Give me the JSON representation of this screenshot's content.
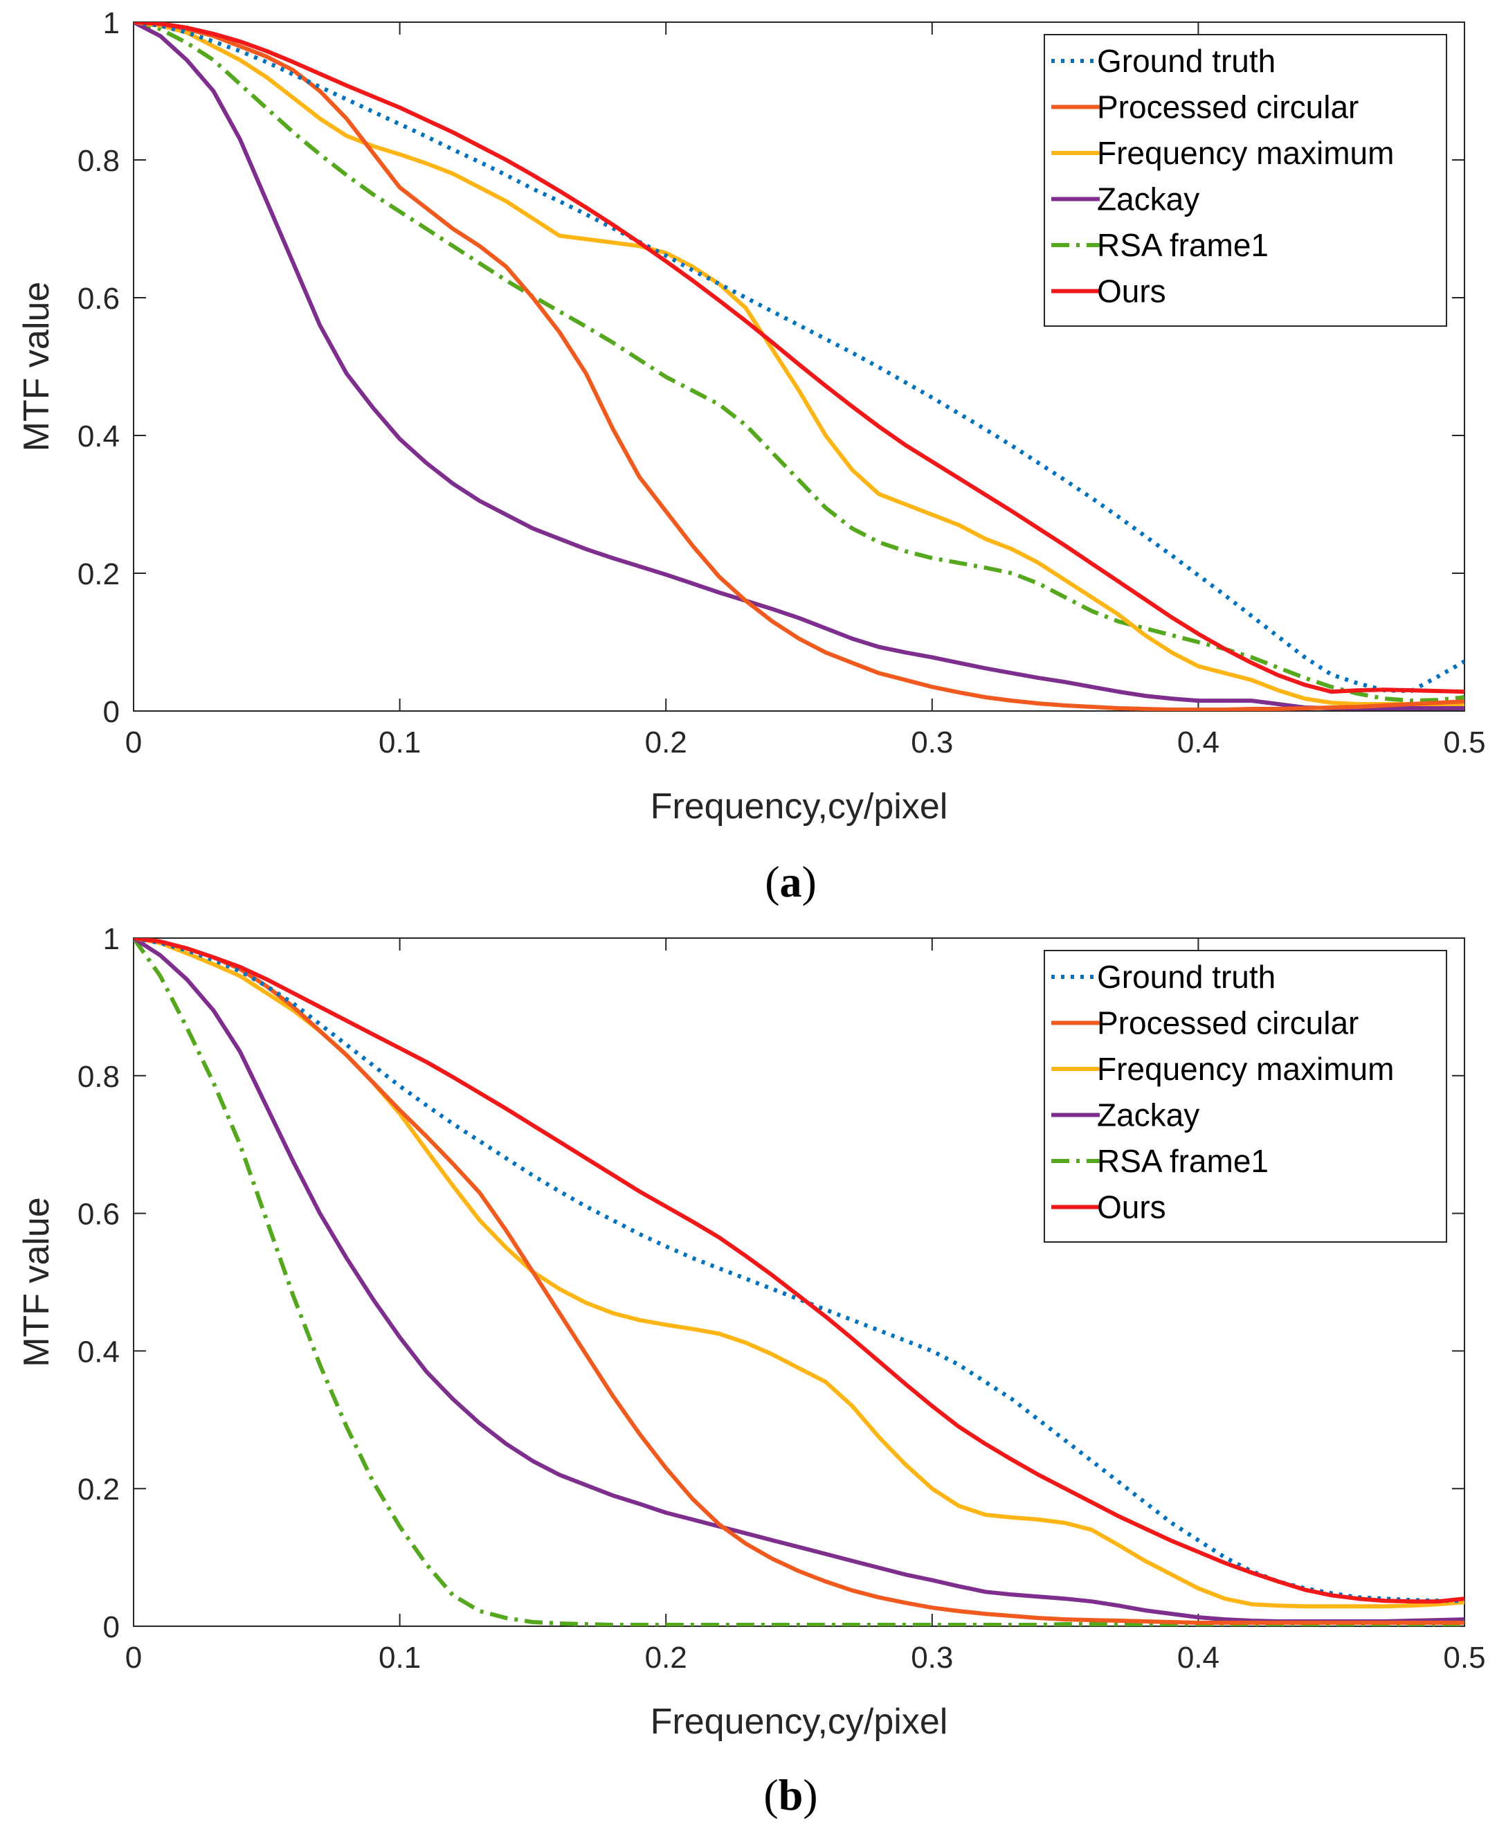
{
  "colors": {
    "ground_truth": "#0072BD",
    "processed_circular": "#F05A1E",
    "frequency_maximum": "#FDB515",
    "zackay": "#7E2F8E",
    "rsa_frame1": "#55A81E",
    "ours": "#F01818",
    "axis": "#262626"
  },
  "chart_data": [
    {
      "type": "line",
      "panel_label": "a",
      "xlabel": "Frequency,cy/pixel",
      "ylabel": "MTF value",
      "xlim": [
        0,
        0.5
      ],
      "ylim": [
        0,
        1
      ],
      "xticks": [
        0,
        0.1,
        0.2,
        0.3,
        0.4,
        0.5
      ],
      "xtick_labels": [
        "0",
        "0.1",
        "0.2",
        "0.3",
        "0.4",
        "0.5"
      ],
      "yticks": [
        0,
        0.2,
        0.4,
        0.6,
        0.8,
        1
      ],
      "ytick_labels": [
        "0",
        "0.2",
        "0.4",
        "0.6",
        "0.8",
        "1"
      ],
      "legend_position": "top-right",
      "x": [
        0,
        0.01,
        0.02,
        0.03,
        0.04,
        0.05,
        0.06,
        0.07,
        0.08,
        0.09,
        0.1,
        0.11,
        0.12,
        0.13,
        0.14,
        0.15,
        0.16,
        0.17,
        0.18,
        0.19,
        0.2,
        0.21,
        0.22,
        0.23,
        0.24,
        0.25,
        0.26,
        0.27,
        0.28,
        0.29,
        0.3,
        0.31,
        0.32,
        0.33,
        0.34,
        0.35,
        0.36,
        0.37,
        0.38,
        0.39,
        0.4,
        0.41,
        0.42,
        0.43,
        0.44,
        0.45,
        0.46,
        0.47,
        0.48,
        0.49,
        0.5
      ],
      "series": [
        {
          "name": "Ground truth",
          "color_key": "ground_truth",
          "style": "dotted",
          "values": [
            1.0,
            0.995,
            0.985,
            0.972,
            0.958,
            0.942,
            0.924,
            0.906,
            0.888,
            0.87,
            0.852,
            0.834,
            0.815,
            0.797,
            0.778,
            0.758,
            0.74,
            0.721,
            0.701,
            0.681,
            0.661,
            0.64,
            0.62,
            0.6,
            0.58,
            0.56,
            0.54,
            0.52,
            0.499,
            0.477,
            0.455,
            0.432,
            0.409,
            0.385,
            0.36,
            0.335,
            0.309,
            0.282,
            0.254,
            0.226,
            0.197,
            0.168,
            0.138,
            0.108,
            0.078,
            0.053,
            0.04,
            0.03,
            0.029,
            0.05,
            0.072
          ]
        },
        {
          "name": "Processed circular",
          "color_key": "processed_circular",
          "style": "solid",
          "values": [
            1.0,
            0.997,
            0.99,
            0.98,
            0.965,
            0.95,
            0.93,
            0.9,
            0.86,
            0.81,
            0.76,
            0.73,
            0.7,
            0.675,
            0.645,
            0.6,
            0.55,
            0.49,
            0.41,
            0.34,
            0.29,
            0.24,
            0.195,
            0.16,
            0.13,
            0.105,
            0.085,
            0.07,
            0.055,
            0.045,
            0.035,
            0.027,
            0.02,
            0.015,
            0.011,
            0.008,
            0.006,
            0.004,
            0.003,
            0.002,
            0.002,
            0.002,
            0.003,
            0.003,
            0.004,
            0.005,
            0.006,
            0.008,
            0.01,
            0.012,
            0.014
          ]
        },
        {
          "name": "Frequency maximum",
          "color_key": "frequency_maximum",
          "style": "solid",
          "values": [
            1.0,
            0.995,
            0.985,
            0.965,
            0.945,
            0.92,
            0.89,
            0.86,
            0.835,
            0.82,
            0.808,
            0.795,
            0.78,
            0.76,
            0.74,
            0.715,
            0.69,
            0.685,
            0.68,
            0.675,
            0.665,
            0.645,
            0.62,
            0.585,
            0.525,
            0.465,
            0.4,
            0.35,
            0.315,
            0.3,
            0.285,
            0.27,
            0.25,
            0.235,
            0.215,
            0.19,
            0.165,
            0.14,
            0.11,
            0.085,
            0.065,
            0.055,
            0.045,
            0.03,
            0.018,
            0.012,
            0.01,
            0.01,
            0.01,
            0.01,
            0.01
          ]
        },
        {
          "name": "Zackay",
          "color_key": "zackay",
          "style": "solid",
          "values": [
            1.0,
            0.98,
            0.945,
            0.9,
            0.83,
            0.74,
            0.65,
            0.56,
            0.49,
            0.44,
            0.395,
            0.36,
            0.33,
            0.305,
            0.285,
            0.265,
            0.25,
            0.235,
            0.222,
            0.21,
            0.198,
            0.185,
            0.172,
            0.16,
            0.148,
            0.135,
            0.12,
            0.105,
            0.093,
            0.085,
            0.078,
            0.07,
            0.062,
            0.055,
            0.048,
            0.042,
            0.035,
            0.028,
            0.022,
            0.018,
            0.015,
            0.015,
            0.015,
            0.01,
            0.005,
            0.004,
            0.004,
            0.004,
            0.004,
            0.004,
            0.004
          ]
        },
        {
          "name": "RSA frame1",
          "color_key": "rsa_frame1",
          "style": "dashdot",
          "values": [
            1.0,
            0.99,
            0.97,
            0.945,
            0.91,
            0.875,
            0.84,
            0.808,
            0.778,
            0.75,
            0.725,
            0.7,
            0.675,
            0.65,
            0.625,
            0.602,
            0.58,
            0.558,
            0.535,
            0.51,
            0.485,
            0.465,
            0.445,
            0.415,
            0.375,
            0.335,
            0.295,
            0.265,
            0.245,
            0.232,
            0.222,
            0.215,
            0.208,
            0.2,
            0.185,
            0.165,
            0.145,
            0.13,
            0.12,
            0.11,
            0.1,
            0.09,
            0.078,
            0.063,
            0.048,
            0.035,
            0.025,
            0.018,
            0.015,
            0.016,
            0.02
          ]
        },
        {
          "name": "Ours",
          "color_key": "ours",
          "style": "solid",
          "values": [
            1.0,
            0.998,
            0.992,
            0.983,
            0.972,
            0.958,
            0.942,
            0.925,
            0.908,
            0.892,
            0.876,
            0.858,
            0.84,
            0.82,
            0.8,
            0.778,
            0.755,
            0.731,
            0.706,
            0.68,
            0.653,
            0.625,
            0.596,
            0.566,
            0.535,
            0.503,
            0.472,
            0.442,
            0.413,
            0.386,
            0.362,
            0.338,
            0.314,
            0.29,
            0.265,
            0.24,
            0.214,
            0.188,
            0.162,
            0.136,
            0.112,
            0.09,
            0.07,
            0.052,
            0.038,
            0.028,
            0.03,
            0.031,
            0.03,
            0.029,
            0.028
          ]
        }
      ],
      "legend_labels": [
        "Ground truth",
        "Processed circular",
        "Frequency maximum",
        "Zackay",
        "RSA frame1",
        "Ours"
      ]
    },
    {
      "type": "line",
      "panel_label": "b",
      "xlabel": "Frequency,cy/pixel",
      "ylabel": "MTF value",
      "xlim": [
        0,
        0.5
      ],
      "ylim": [
        0,
        1
      ],
      "xticks": [
        0,
        0.1,
        0.2,
        0.3,
        0.4,
        0.5
      ],
      "xtick_labels": [
        "0",
        "0.1",
        "0.2",
        "0.3",
        "0.4",
        "0.5"
      ],
      "yticks": [
        0,
        0.2,
        0.4,
        0.6,
        0.8,
        1
      ],
      "ytick_labels": [
        "0",
        "0.2",
        "0.4",
        "0.6",
        "0.8",
        "1"
      ],
      "legend_position": "top-right",
      "x": [
        0,
        0.01,
        0.02,
        0.03,
        0.04,
        0.05,
        0.06,
        0.07,
        0.08,
        0.09,
        0.1,
        0.11,
        0.12,
        0.13,
        0.14,
        0.15,
        0.16,
        0.17,
        0.18,
        0.19,
        0.2,
        0.21,
        0.22,
        0.23,
        0.24,
        0.25,
        0.26,
        0.27,
        0.28,
        0.29,
        0.3,
        0.31,
        0.32,
        0.33,
        0.34,
        0.35,
        0.36,
        0.37,
        0.38,
        0.39,
        0.4,
        0.41,
        0.42,
        0.43,
        0.44,
        0.45,
        0.46,
        0.47,
        0.48,
        0.49,
        0.5
      ],
      "series": [
        {
          "name": "Ground truth",
          "color_key": "ground_truth",
          "style": "dotted",
          "values": [
            1.0,
            0.993,
            0.982,
            0.968,
            0.952,
            0.93,
            0.905,
            0.875,
            0.845,
            0.815,
            0.785,
            0.757,
            0.73,
            0.705,
            0.68,
            0.655,
            0.632,
            0.61,
            0.59,
            0.57,
            0.552,
            0.535,
            0.52,
            0.505,
            0.49,
            0.475,
            0.46,
            0.445,
            0.43,
            0.415,
            0.4,
            0.38,
            0.355,
            0.33,
            0.3,
            0.27,
            0.24,
            0.21,
            0.18,
            0.15,
            0.125,
            0.1,
            0.08,
            0.065,
            0.055,
            0.048,
            0.042,
            0.04,
            0.038,
            0.037,
            0.037
          ]
        },
        {
          "name": "Processed circular",
          "color_key": "processed_circular",
          "style": "solid",
          "values": [
            1.0,
            0.995,
            0.985,
            0.972,
            0.955,
            0.93,
            0.9,
            0.865,
            0.83,
            0.79,
            0.75,
            0.712,
            0.672,
            0.63,
            0.575,
            0.515,
            0.455,
            0.395,
            0.335,
            0.28,
            0.23,
            0.185,
            0.148,
            0.12,
            0.098,
            0.08,
            0.065,
            0.052,
            0.042,
            0.034,
            0.027,
            0.022,
            0.018,
            0.015,
            0.012,
            0.01,
            0.009,
            0.008,
            0.007,
            0.006,
            0.005,
            0.005,
            0.005,
            0.005,
            0.005,
            0.005,
            0.005,
            0.005,
            0.005,
            0.005,
            0.005
          ]
        },
        {
          "name": "Frequency maximum",
          "color_key": "frequency_maximum",
          "style": "solid",
          "values": [
            1.0,
            0.993,
            0.978,
            0.962,
            0.945,
            0.92,
            0.895,
            0.865,
            0.83,
            0.79,
            0.745,
            0.692,
            0.64,
            0.59,
            0.55,
            0.515,
            0.49,
            0.47,
            0.455,
            0.445,
            0.438,
            0.432,
            0.425,
            0.412,
            0.395,
            0.375,
            0.355,
            0.32,
            0.275,
            0.235,
            0.2,
            0.175,
            0.162,
            0.158,
            0.155,
            0.15,
            0.14,
            0.118,
            0.095,
            0.075,
            0.055,
            0.04,
            0.032,
            0.03,
            0.029,
            0.029,
            0.029,
            0.029,
            0.03,
            0.032,
            0.035
          ]
        },
        {
          "name": "Zackay",
          "color_key": "zackay",
          "style": "solid",
          "values": [
            1.0,
            0.975,
            0.94,
            0.895,
            0.835,
            0.755,
            0.675,
            0.6,
            0.535,
            0.475,
            0.42,
            0.37,
            0.33,
            0.295,
            0.265,
            0.24,
            0.22,
            0.205,
            0.19,
            0.178,
            0.165,
            0.155,
            0.145,
            0.135,
            0.125,
            0.115,
            0.105,
            0.095,
            0.085,
            0.075,
            0.067,
            0.058,
            0.05,
            0.046,
            0.043,
            0.04,
            0.036,
            0.03,
            0.023,
            0.018,
            0.013,
            0.01,
            0.008,
            0.007,
            0.007,
            0.007,
            0.007,
            0.007,
            0.008,
            0.009,
            0.01
          ]
        },
        {
          "name": "RSA frame1",
          "color_key": "rsa_frame1",
          "style": "dashdot",
          "values": [
            1.0,
            0.945,
            0.87,
            0.79,
            0.7,
            0.59,
            0.48,
            0.38,
            0.29,
            0.21,
            0.145,
            0.09,
            0.045,
            0.022,
            0.012,
            0.006,
            0.004,
            0.003,
            0.002,
            0.002,
            0.002,
            0.002,
            0.002,
            0.002,
            0.002,
            0.002,
            0.002,
            0.002,
            0.002,
            0.002,
            0.002,
            0.002,
            0.002,
            0.002,
            0.002,
            0.003,
            0.003,
            0.003,
            0.003,
            0.003,
            0.003,
            0.003,
            0.003,
            0.003,
            0.003,
            0.003,
            0.003,
            0.003,
            0.003,
            0.003,
            0.003
          ]
        },
        {
          "name": "Ours",
          "color_key": "ours",
          "style": "solid",
          "values": [
            1.0,
            0.995,
            0.985,
            0.972,
            0.958,
            0.94,
            0.92,
            0.9,
            0.88,
            0.86,
            0.84,
            0.82,
            0.798,
            0.775,
            0.752,
            0.728,
            0.704,
            0.68,
            0.656,
            0.632,
            0.61,
            0.588,
            0.565,
            0.538,
            0.51,
            0.48,
            0.45,
            0.418,
            0.385,
            0.352,
            0.32,
            0.29,
            0.265,
            0.242,
            0.22,
            0.2,
            0.18,
            0.16,
            0.142,
            0.124,
            0.108,
            0.092,
            0.078,
            0.065,
            0.053,
            0.045,
            0.04,
            0.037,
            0.036,
            0.036,
            0.04
          ]
        }
      ],
      "legend_labels": [
        "Ground truth",
        "Processed circular",
        "Frequency maximum",
        "Zackay",
        "RSA frame1",
        "Ours"
      ]
    }
  ]
}
